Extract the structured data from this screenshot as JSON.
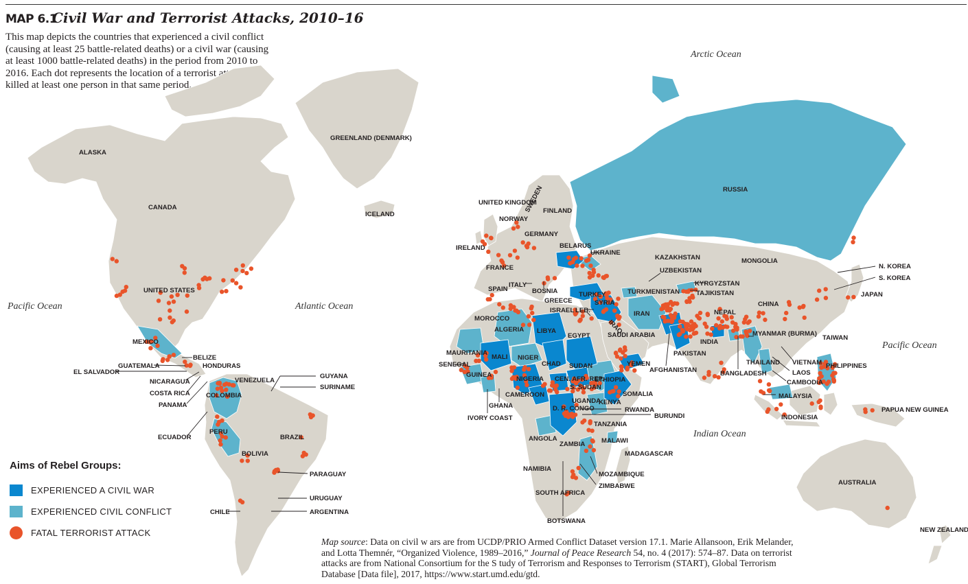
{
  "header": {
    "map_number": "MAP 6.1",
    "title": "Civil War and Terrorist Attacks, 2010–16",
    "description": "This map depicts the countries that experienced a civil conflict (causing at least 25 battle-related deaths) or a civil war (causing at least 1000 battle-related deaths) in the period from 2010 to 2016. Each dot represents the location of a terrorist attack that killed at least one person in that same period."
  },
  "colors": {
    "land": "#d9d5cc",
    "civil_war": "#0a87cf",
    "civil_conflict": "#5db3cc",
    "terrorist_attack": "#e9542a",
    "ocean": "#ffffff"
  },
  "oceans": [
    {
      "name": "Arctic Ocean"
    },
    {
      "name": "Pacific Ocean"
    },
    {
      "name": "Atlantic Ocean"
    },
    {
      "name": "Indian Ocean"
    },
    {
      "name": "Pacific Ocean"
    }
  ],
  "countries": [
    "ALASKA",
    "CANADA",
    "GREENLAND (DENMARK)",
    "ICELAND",
    "UNITED STATES",
    "MEXICO",
    "BELIZE",
    "GUATEMALA",
    "HONDURAS",
    "EL SALVADOR",
    "NICARAGUA",
    "COSTA RICA",
    "PANAMA",
    "VENEZUELA",
    "COLOMBIA",
    "GUYANA",
    "SURINAME",
    "ECUADOR",
    "PERU",
    "BRAZIL",
    "BOLIVIA",
    "PARAGUAY",
    "URUGUAY",
    "ARGENTINA",
    "CHILE",
    "UNITED KINGDOM",
    "SWEDEN",
    "NORWAY",
    "FINLAND",
    "IRELAND",
    "GERMANY",
    "FRANCE",
    "SPAIN",
    "ITALY",
    "BOSNIA",
    "BELARUS",
    "UKRAINE",
    "GREECE",
    "TURKEY",
    "SYRIA",
    "ISRAEL",
    "LEB.",
    "IRAQ",
    "IRAN",
    "RUSSIA",
    "KAZAKHSTAN",
    "UZBEKISTAN",
    "TURKMENISTAN",
    "KYRGYZSTAN",
    "TAJIKISTAN",
    "MONGOLIA",
    "CHINA",
    "N. KOREA",
    "S. KOREA",
    "JAPAN",
    "AFGHANISTAN",
    "PAKISTAN",
    "NEPAL",
    "INDIA",
    "BANGLADESH",
    "MYANMAR (BURMA)",
    "THAILAND",
    "VIETNAM",
    "LAOS",
    "CAMBODIA",
    "TAIWAN",
    "PHILIPPINES",
    "MALAYSIA",
    "INDONESIA",
    "PAPUA NEW GUINEA",
    "AUSTRALIA",
    "NEW ZEALAND",
    "MOROCCO",
    "ALGERIA",
    "LIBYA",
    "EGYPT",
    "MAURITANIA",
    "MALI",
    "NIGER",
    "CHAD",
    "SUDAN",
    "SENEGAL",
    "GUINEA",
    "IVORY COAST",
    "GHANA",
    "NIGERIA",
    "CAMEROON",
    "CEN. AFR. REP.",
    "S. SUDAN",
    "ETHIOPIA",
    "SOMALIA",
    "UGANDA",
    "KENYA",
    "D. R. CONGO",
    "RWANDA",
    "BURUNDI",
    "TANZANIA",
    "ANGOLA",
    "ZAMBIA",
    "MALAWI",
    "MADAGASCAR",
    "MOZAMBIQUE",
    "ZIMBABWE",
    "NAMIBIA",
    "BOTSWANA",
    "SOUTH AFRICA",
    "SAUDI ARABIA",
    "YEMEN"
  ],
  "legend": {
    "title": "Aims of Rebel Groups:",
    "items": [
      {
        "label": "EXPERIENCED A CIVIL WAR",
        "color": "#0a87cf",
        "shape": "square"
      },
      {
        "label": "EXPERIENCED CIVIL CONFLICT",
        "color": "#5db3cc",
        "shape": "square"
      },
      {
        "label": "FATAL TERRORIST ATTACK",
        "color": "#e9542a",
        "shape": "circle"
      }
    ]
  },
  "source": {
    "prefix": "Map source",
    "text1": ": Data on civil w ars are from UCDP/PRIO Armed Conflict Dataset version 17.1. Marie Allansoon, Erik Melander, and Lotta Themnér, “Organized Violence, 1989–2016,” ",
    "journal": "Journal of Peace Research",
    "text2": " 54, no. 4 (2017): 574–87. Data on terrorist attacks are from National Consortium for the S tudy of Terrorism and Responses to Terrorism (START), Global Terrorism Database [Data file], 2017, https://www.start.umd.edu/gtd."
  }
}
